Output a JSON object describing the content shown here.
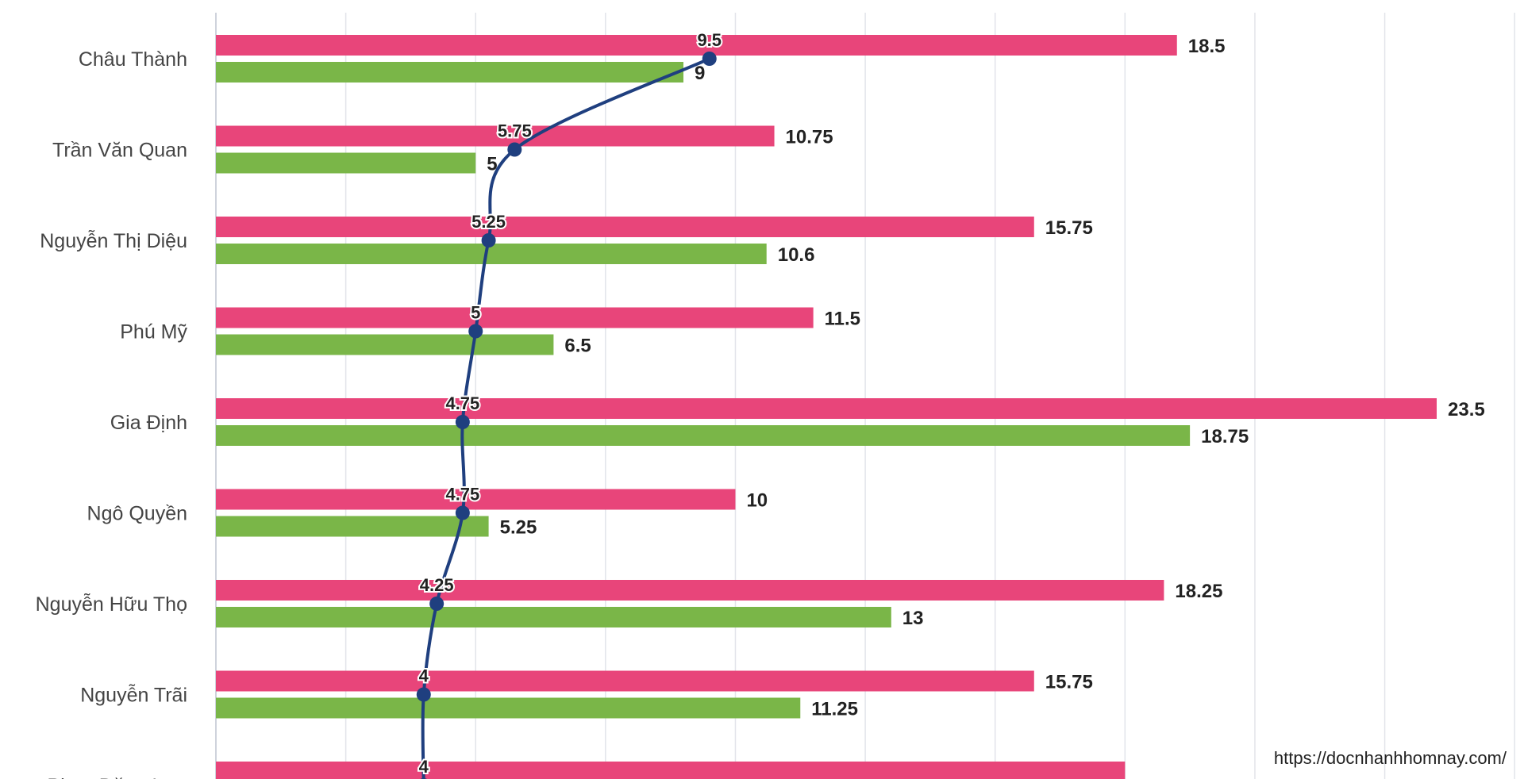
{
  "chart_data": {
    "type": "bar",
    "orientation": "horizontal",
    "categories": [
      "Châu Thành",
      "Trần Văn Quan",
      "Nguyễn Thị Diệu",
      "Phú Mỹ",
      "Gia Định",
      "Ngô Quyền",
      "Nguyễn Hữu Thọ",
      "Nguyễn Trãi",
      "Phan Đăng Lưu"
    ],
    "series": [
      {
        "type": "bar",
        "color": "#e8457a",
        "values": [
          18.5,
          10.75,
          15.75,
          11.5,
          23.5,
          10,
          18.25,
          15.75,
          17.5
        ]
      },
      {
        "type": "bar",
        "color": "#7ab648",
        "values": [
          9,
          5,
          10.6,
          6.5,
          18.75,
          5.25,
          13,
          11.25,
          null
        ]
      },
      {
        "type": "line",
        "color": "#1f3f7f",
        "values": [
          9.5,
          5.75,
          5.25,
          5,
          4.75,
          4.75,
          4.25,
          4,
          4
        ]
      }
    ],
    "xlim": [
      0,
      25
    ],
    "grid": true,
    "data_labels": {
      "bar1": [
        "18.5",
        "10.75",
        "15.75",
        "11.5",
        "23.5",
        "10",
        "18.25",
        "15.75",
        ""
      ],
      "bar2": [
        "9",
        "5",
        "10.6",
        "6.5",
        "18.75",
        "5.25",
        "13",
        "11.25",
        ""
      ],
      "line": [
        "9.5",
        "5.75",
        "5.25",
        "5",
        "4.75",
        "4.75",
        "4.25",
        "4",
        "4"
      ]
    }
  },
  "watermark": {
    "text": "https://docnhanhhomnay.com/"
  },
  "colors": {
    "grid": "#e2e4ea",
    "axis": "#cfd3dc",
    "bg": "#ffffff"
  }
}
